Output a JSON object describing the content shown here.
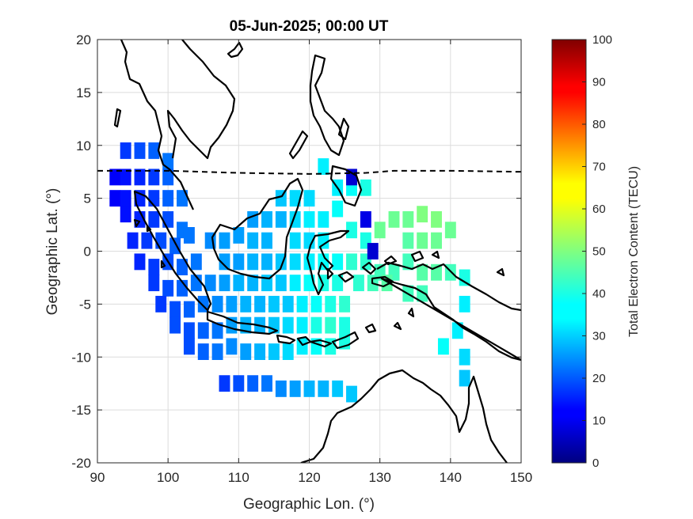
{
  "chart_data": {
    "type": "heatmap",
    "title": "05-Jun-2025; 00:00 UT",
    "xlabel": "Geographic Lon. (°)",
    "ylabel": "Geographic Lat. (°)",
    "xlim": [
      90,
      150
    ],
    "ylim": [
      -20,
      20
    ],
    "xticks": [
      90,
      100,
      110,
      120,
      130,
      140,
      150
    ],
    "yticks": [
      -20,
      -15,
      -10,
      -5,
      0,
      5,
      10,
      15,
      20
    ],
    "grid": true,
    "colorbar": {
      "label": "Total Electron Content (TECU)",
      "range": [
        0,
        100
      ],
      "ticks": [
        0,
        10,
        20,
        30,
        40,
        50,
        60,
        70,
        80,
        90,
        100
      ],
      "colormap": "jet"
    },
    "magnetic_equator_lat": [
      [
        90,
        7.6
      ],
      [
        100,
        7.6
      ],
      [
        110,
        7.4
      ],
      [
        120,
        7.3
      ],
      [
        128,
        7.4
      ],
      [
        132,
        7.6
      ],
      [
        140,
        7.6
      ],
      [
        150,
        7.5
      ]
    ],
    "tec_cells": [
      [
        94,
        9.5,
        18
      ],
      [
        96,
        9.5,
        20
      ],
      [
        98,
        9.5,
        22
      ],
      [
        100,
        8.5,
        24
      ],
      [
        92.5,
        7,
        12
      ],
      [
        94,
        7,
        14
      ],
      [
        96,
        7,
        16
      ],
      [
        98,
        7,
        18
      ],
      [
        100,
        7,
        22
      ],
      [
        92.5,
        5,
        12
      ],
      [
        94,
        5,
        14
      ],
      [
        96,
        5,
        16
      ],
      [
        98,
        5,
        18
      ],
      [
        100,
        5,
        22
      ],
      [
        102,
        5,
        24
      ],
      [
        94,
        3.5,
        14
      ],
      [
        96,
        3,
        16
      ],
      [
        98,
        3,
        18
      ],
      [
        100,
        3,
        20
      ],
      [
        102,
        2,
        24
      ],
      [
        95,
        1,
        16
      ],
      [
        97,
        1,
        18
      ],
      [
        99,
        1,
        20
      ],
      [
        101,
        0.5,
        22
      ],
      [
        103,
        1.5,
        24
      ],
      [
        96,
        -1,
        16
      ],
      [
        98,
        -1.5,
        18
      ],
      [
        100,
        -1,
        20
      ],
      [
        102,
        -1.5,
        22
      ],
      [
        104,
        -1,
        24
      ],
      [
        98,
        -3,
        18
      ],
      [
        100,
        -3.5,
        20
      ],
      [
        102,
        -3.5,
        22
      ],
      [
        104,
        -3,
        24
      ],
      [
        106,
        -3,
        26
      ],
      [
        99,
        -5,
        18
      ],
      [
        101,
        -5.5,
        20
      ],
      [
        103,
        -5.5,
        22
      ],
      [
        105,
        -5,
        24
      ],
      [
        107,
        -5,
        26
      ],
      [
        101,
        -7,
        20
      ],
      [
        103,
        -7.5,
        20
      ],
      [
        105,
        -7.5,
        22
      ],
      [
        107,
        -7.5,
        24
      ],
      [
        103,
        -9,
        20
      ],
      [
        105,
        -9.5,
        22
      ],
      [
        107,
        -9.5,
        24
      ],
      [
        106,
        1,
        26
      ],
      [
        108,
        1,
        28
      ],
      [
        110,
        1.5,
        28
      ],
      [
        112,
        1,
        30
      ],
      [
        114,
        1,
        30
      ],
      [
        108,
        -1,
        28
      ],
      [
        110,
        -1,
        28
      ],
      [
        112,
        -1,
        30
      ],
      [
        114,
        -1,
        30
      ],
      [
        116,
        -1,
        32
      ],
      [
        108,
        -3,
        28
      ],
      [
        110,
        -3,
        30
      ],
      [
        112,
        -3,
        30
      ],
      [
        114,
        -3,
        32
      ],
      [
        116,
        -3,
        32
      ],
      [
        109,
        -5,
        28
      ],
      [
        111,
        -5,
        30
      ],
      [
        113,
        -5,
        30
      ],
      [
        115,
        -5,
        32
      ],
      [
        117,
        -5,
        32
      ],
      [
        109,
        -7,
        28
      ],
      [
        111,
        -7,
        30
      ],
      [
        113,
        -7,
        30
      ],
      [
        115,
        -7,
        32
      ],
      [
        117,
        -7,
        34
      ],
      [
        109,
        -9,
        26
      ],
      [
        111,
        -9.5,
        28
      ],
      [
        113,
        -9.5,
        30
      ],
      [
        115,
        -9.5,
        32
      ],
      [
        117,
        -9.5,
        34
      ],
      [
        112,
        3,
        28
      ],
      [
        114,
        3,
        30
      ],
      [
        116,
        3,
        30
      ],
      [
        116,
        5,
        32
      ],
      [
        118,
        5,
        34
      ],
      [
        120,
        5,
        34
      ],
      [
        118,
        3,
        34
      ],
      [
        120,
        3,
        36
      ],
      [
        122,
        3,
        36
      ],
      [
        120,
        1,
        34
      ],
      [
        122,
        1,
        36
      ],
      [
        118,
        1,
        34
      ],
      [
        118,
        -1,
        34
      ],
      [
        120,
        -1,
        36
      ],
      [
        122,
        -1,
        38
      ],
      [
        124,
        -1,
        38
      ],
      [
        118,
        -3,
        36
      ],
      [
        120,
        -3,
        38
      ],
      [
        122,
        -3,
        40
      ],
      [
        124,
        -3,
        40
      ],
      [
        119,
        -5,
        36
      ],
      [
        121,
        -5,
        38
      ],
      [
        123,
        -5,
        40
      ],
      [
        125,
        -5,
        42
      ],
      [
        119,
        -7,
        36
      ],
      [
        121,
        -7,
        40
      ],
      [
        123,
        -7,
        42
      ],
      [
        125,
        -7,
        40
      ],
      [
        119,
        -9,
        36
      ],
      [
        121,
        -9,
        38
      ],
      [
        123,
        -9,
        40
      ],
      [
        125,
        -8.5,
        40
      ],
      [
        122,
        8,
        36
      ],
      [
        124,
        6,
        36
      ],
      [
        126,
        6,
        38
      ],
      [
        126,
        7,
        8
      ],
      [
        128,
        6,
        40
      ],
      [
        124,
        4,
        38
      ],
      [
        128,
        3,
        10
      ],
      [
        126,
        2,
        40
      ],
      [
        128,
        1,
        40
      ],
      [
        126,
        -1,
        42
      ],
      [
        128,
        -1,
        42
      ],
      [
        129,
        0,
        8
      ],
      [
        130,
        -2,
        44
      ],
      [
        132,
        -2,
        44
      ],
      [
        127,
        -3,
        42
      ],
      [
        129,
        -3,
        44
      ],
      [
        131,
        -3,
        46
      ],
      [
        130,
        2,
        48
      ],
      [
        132,
        3,
        48
      ],
      [
        134,
        3,
        48
      ],
      [
        136,
        3.5,
        50
      ],
      [
        138,
        3,
        50
      ],
      [
        140,
        2,
        48
      ],
      [
        134,
        1,
        46
      ],
      [
        136,
        1,
        48
      ],
      [
        138,
        1,
        48
      ],
      [
        134,
        -1,
        44
      ],
      [
        136,
        -2,
        46
      ],
      [
        138,
        -2,
        46
      ],
      [
        140,
        -2,
        44
      ],
      [
        142,
        -2.5,
        40
      ],
      [
        134,
        -4,
        44
      ],
      [
        136,
        -4,
        44
      ],
      [
        142,
        -5,
        36
      ],
      [
        141,
        -7.5,
        36
      ],
      [
        142,
        -10,
        34
      ],
      [
        142,
        -12,
        32
      ],
      [
        139,
        -9,
        38
      ],
      [
        108,
        -12.5,
        18
      ],
      [
        110,
        -12.5,
        20
      ],
      [
        112,
        -12.5,
        22
      ],
      [
        114,
        -12.5,
        24
      ],
      [
        116,
        -13,
        26
      ],
      [
        118,
        -13,
        28
      ],
      [
        120,
        -13,
        30
      ],
      [
        122,
        -13,
        30
      ],
      [
        124,
        -13,
        32
      ],
      [
        126,
        -13.5,
        32
      ]
    ]
  }
}
